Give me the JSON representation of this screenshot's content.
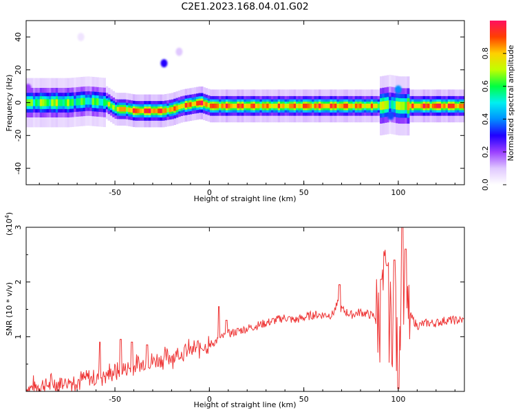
{
  "figure": {
    "title": "C2E1.2023.168.04.01.G02"
  },
  "chart_data": [
    {
      "type": "heatmap",
      "title": "",
      "xlabel": "Height of straight line (km)",
      "ylabel": "Frequency (Hz)",
      "xlim": [
        -97,
        135
      ],
      "ylim": [
        -50,
        50
      ],
      "xticks": [
        -50,
        0,
        50,
        100
      ],
      "yticks": [
        40,
        20,
        0,
        -20,
        -40
      ],
      "colorbar": {
        "label": "Normalized spectral amplitude",
        "range": [
          0,
          1
        ],
        "ticks": [
          0.0,
          0.2,
          0.4,
          0.6,
          0.8
        ],
        "colors": [
          "#ffffff",
          "#e0c8ff",
          "#9a40ff",
          "#2000ff",
          "#0090ff",
          "#00f0f0",
          "#00ff40",
          "#c0ff00",
          "#ffd000",
          "#ff4000",
          "#ff1060"
        ]
      },
      "ridge": {
        "x": [
          -97,
          -85,
          -75,
          -65,
          -55,
          -50,
          -45,
          -40,
          -35,
          -30,
          -25,
          -20,
          -15,
          -10,
          -5,
          0,
          10,
          20,
          30,
          40,
          50,
          60,
          70,
          80,
          90,
          95,
          100,
          105,
          110,
          120,
          135
        ],
        "freq": [
          0,
          0,
          0,
          1,
          0,
          -4,
          -4,
          -5,
          -5,
          -5,
          -5,
          -4,
          -2,
          -1,
          0,
          -2,
          -2,
          -2,
          -2,
          -2,
          -2,
          -2,
          -2,
          -2,
          -2,
          -1,
          -2,
          -2,
          -2,
          -2,
          -2
        ],
        "amplitude": [
          0.6,
          0.65,
          0.6,
          0.55,
          0.6,
          0.75,
          0.8,
          0.85,
          0.9,
          0.9,
          0.85,
          0.8,
          0.8,
          0.85,
          0.9,
          0.85,
          0.85,
          0.85,
          0.8,
          0.8,
          0.85,
          0.85,
          0.85,
          0.8,
          0.75,
          0.55,
          0.65,
          0.8,
          0.85,
          0.9,
          0.85
        ]
      },
      "blobs": [
        {
          "x": -24,
          "freq": 24,
          "amplitude": 0.3
        },
        {
          "x": -16,
          "freq": 31,
          "amplitude": 0.1
        },
        {
          "x": -68,
          "freq": 40,
          "amplitude": 0.05
        },
        {
          "x": -96,
          "freq": 9,
          "amplitude": 0.2
        },
        {
          "x": 100,
          "freq": 8,
          "amplitude": 0.4
        },
        {
          "x": 96,
          "freq": -8,
          "amplitude": 0.35
        }
      ]
    },
    {
      "type": "line",
      "title": "",
      "xlabel": "Height of straight line (km)",
      "ylabel": "SNR (10 * v/v)",
      "yscale_label": "(x10",
      "yscale_exp": "4",
      "yscale_close": ")",
      "xlim": [
        -97,
        135
      ],
      "ylim": [
        0,
        3
      ],
      "xticks": [
        -50,
        0,
        50,
        100
      ],
      "yticks": [
        1,
        2,
        3
      ],
      "color": "#ee3333",
      "series": [
        {
          "x": [
            -97,
            -90,
            -80,
            -70,
            -60,
            -55,
            -50,
            -45,
            -40,
            -35,
            -30,
            -25,
            -20,
            -15,
            -10,
            -5,
            0,
            5,
            10,
            15,
            20,
            25,
            30,
            35,
            40,
            45,
            50,
            55,
            60,
            65,
            68,
            70,
            75,
            80,
            85,
            90,
            93,
            96,
            98,
            100,
            102,
            104,
            106,
            110,
            115,
            120,
            125,
            130,
            135
          ],
          "y": [
            0.05,
            0.1,
            0.15,
            0.2,
            0.25,
            0.3,
            0.35,
            0.4,
            0.45,
            0.5,
            0.55,
            0.6,
            0.65,
            0.7,
            0.75,
            0.8,
            0.85,
            0.95,
            1.05,
            1.1,
            1.15,
            1.2,
            1.25,
            1.3,
            1.35,
            1.3,
            1.35,
            1.4,
            1.4,
            1.4,
            1.6,
            1.5,
            1.4,
            1.45,
            1.4,
            1.35,
            1.9,
            1.2,
            1.5,
            0.2,
            2.8,
            1.0,
            1.4,
            1.2,
            1.25,
            1.25,
            1.3,
            1.3,
            1.3
          ],
          "spikes": [
            {
              "x": -58,
              "y": 0.9
            },
            {
              "x": -47,
              "y": 0.95
            },
            {
              "x": -41,
              "y": 0.9
            },
            {
              "x": -33,
              "y": 0.85
            },
            {
              "x": 5,
              "y": 1.55
            },
            {
              "x": 9,
              "y": 1.3
            },
            {
              "x": 69,
              "y": 1.95
            },
            {
              "x": 91,
              "y": 2.05
            },
            {
              "x": 94,
              "y": 2.3
            },
            {
              "x": 98,
              "y": 2.4
            },
            {
              "x": 100,
              "y": 0.05
            },
            {
              "x": 102,
              "y": 3.0
            },
            {
              "x": 104,
              "y": 2.6
            }
          ]
        }
      ]
    }
  ]
}
